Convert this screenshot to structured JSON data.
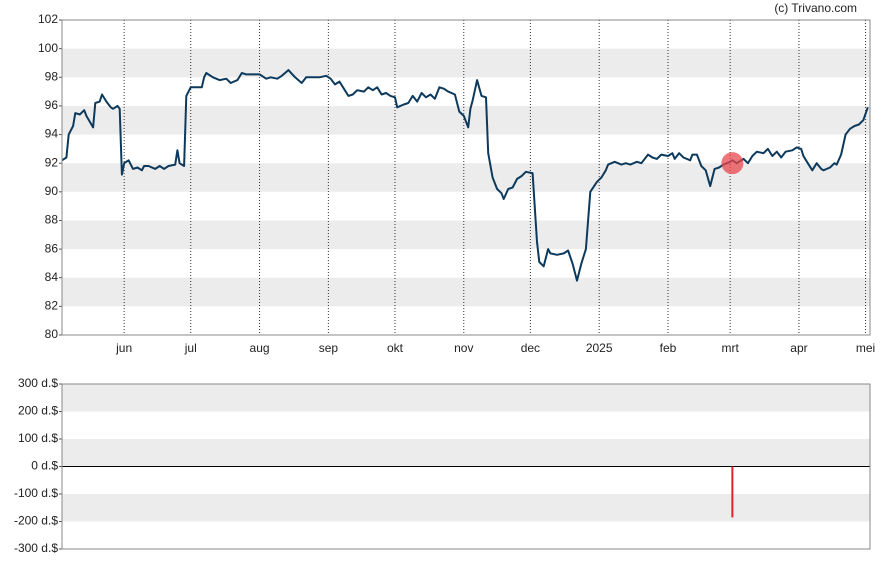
{
  "source": "(c) Trivano.com",
  "chart_data": [
    {
      "type": "line",
      "x": [
        -28,
        -26,
        -25,
        -23,
        -22,
        -20,
        -18,
        -17,
        -14,
        -13,
        -11,
        -10,
        -8,
        -6,
        -5,
        -3,
        -2,
        -1,
        0,
        2,
        4,
        6,
        8,
        9,
        11,
        14,
        16,
        18,
        20,
        23,
        24,
        25,
        27,
        28,
        30,
        33,
        35,
        36,
        37,
        40,
        43,
        46,
        48,
        51,
        53,
        55,
        58,
        61,
        64,
        66,
        69,
        71,
        74,
        77,
        80,
        82,
        85,
        88,
        91,
        93,
        95,
        97,
        99,
        101,
        103,
        105,
        108,
        110,
        112,
        114,
        116,
        118,
        120,
        122,
        123,
        126,
        128,
        130,
        132,
        134,
        136,
        138,
        140,
        142,
        144,
        146,
        149,
        151,
        153,
        155,
        156,
        157,
        159,
        161,
        163,
        164,
        166,
        168,
        170,
        171,
        173,
        175,
        177,
        179,
        181,
        184,
        186,
        187,
        189,
        191,
        192,
        195,
        198,
        200,
        202,
        204,
        206,
        208,
        210,
        213,
        215,
        217,
        218,
        221,
        224,
        226,
        228,
        231,
        233,
        236,
        238,
        240,
        242,
        245,
        247,
        248,
        250,
        252,
        255,
        256,
        258,
        260,
        262,
        264,
        266,
        268,
        270,
        273,
        274,
        276,
        279,
        281,
        283,
        285,
        288,
        290,
        292,
        294,
        296,
        298,
        301,
        303,
        305,
        306,
        308,
        310,
        312,
        314,
        315,
        318,
        320,
        321,
        323,
        325,
        327,
        329,
        331,
        333,
        335
      ],
      "series": [
        {
          "color": "#0d3a5c",
          "values": [
            92.2,
            92.4,
            94,
            94.6,
            95.5,
            95.4,
            95.7,
            95.3,
            94.5,
            96.2,
            96.3,
            96.8,
            96.3,
            95.9,
            95.8,
            96.0,
            95.8,
            91.2,
            92,
            92.2,
            91.6,
            91.7,
            91.5,
            91.8,
            91.8,
            91.6,
            91.8,
            91.6,
            91.8,
            91.9,
            92.9,
            92.0,
            91.8,
            96.7,
            97.3,
            97.3,
            97.3,
            98.0,
            98.3,
            98.0,
            97.8,
            97.9,
            97.6,
            97.8,
            98.3,
            98.2,
            98.2,
            98.2,
            97.9,
            98.0,
            97.9,
            98.1,
            98.5,
            98.0,
            97.6,
            98.0,
            98.0,
            98.0,
            98.1,
            97.9,
            97.5,
            97.7,
            97.2,
            96.7,
            96.8,
            97.1,
            97.0,
            97.3,
            97.1,
            97.3,
            96.8,
            96.9,
            96.7,
            96.6,
            95.9,
            96.1,
            96.2,
            96.7,
            96.3,
            96.9,
            96.6,
            96.8,
            96.5,
            97.3,
            97.2,
            97.0,
            96.8,
            95.6,
            95.3,
            94.5,
            95.8,
            96.4,
            97.8,
            96.7,
            96.6,
            92.7,
            91.0,
            90.2,
            89.9,
            89.5,
            90.2,
            90.3,
            90.9,
            91.1,
            91.4,
            91.3,
            86.5,
            85.1,
            84.8,
            86.0,
            85.7,
            85.6,
            85.7,
            85.9,
            85.0,
            83.8,
            85.0,
            86.0,
            90.0,
            90.7,
            91.0,
            91.5,
            91.9,
            92.1,
            91.9,
            92.0,
            91.9,
            92.1,
            92.0,
            92.6,
            92.4,
            92.3,
            92.6,
            92.5,
            92.7,
            92.3,
            92.7,
            92.4,
            92.2,
            92.6,
            92.6,
            91.8,
            91.5,
            90.4,
            91.6,
            91.7,
            91.9,
            92.1,
            92.2,
            92.0,
            92.3,
            92.0,
            92.5,
            92.8,
            92.7,
            93.0,
            92.5,
            92.8,
            92.4,
            92.8,
            92.9,
            93.1,
            93.0,
            92.5,
            92.0,
            91.5,
            92.0,
            91.6,
            91.5,
            91.7,
            92.0,
            91.9,
            92.6,
            94.0,
            94.4,
            94.6,
            94.7,
            95.0,
            95.9
          ]
        }
      ],
      "markers": {
        "color": "#e8474c",
        "x": [
          274
        ],
        "values": [
          92.0
        ]
      },
      "xlim": [
        -28,
        336
      ],
      "xticks": [
        {
          "value": 0,
          "label": "jun"
        },
        {
          "value": 30,
          "label": "jul"
        },
        {
          "value": 61,
          "label": "aug"
        },
        {
          "value": 92,
          "label": "sep"
        },
        {
          "value": 122,
          "label": "okt"
        },
        {
          "value": 153,
          "label": "nov"
        },
        {
          "value": 183,
          "label": "dec"
        },
        {
          "value": 214,
          "label": "2025"
        },
        {
          "value": 245,
          "label": "feb"
        },
        {
          "value": 273,
          "label": "mrt"
        },
        {
          "value": 304,
          "label": "apr"
        },
        {
          "value": 334,
          "label": "mei"
        }
      ],
      "ylim": [
        80,
        102
      ],
      "yticks": [
        80,
        82,
        84,
        86,
        88,
        90,
        92,
        94,
        96,
        98,
        100,
        102
      ],
      "grid": true
    },
    {
      "type": "bar",
      "x": [
        274
      ],
      "values": [
        -185
      ],
      "color": "#e0202a",
      "xlim": [
        -28,
        336
      ],
      "ylim": [
        -300,
        300
      ],
      "yticks": [
        {
          "value": -300,
          "label": "-300 d.$"
        },
        {
          "value": -200,
          "label": "-200 d.$"
        },
        {
          "value": -100,
          "label": "-100 d.$"
        },
        {
          "value": 0,
          "label": "0 d.$"
        },
        {
          "value": 100,
          "label": "100 d.$"
        },
        {
          "value": 200,
          "label": "200 d.$"
        },
        {
          "value": 300,
          "label": "300 d.$"
        }
      ],
      "grid": false
    }
  ]
}
